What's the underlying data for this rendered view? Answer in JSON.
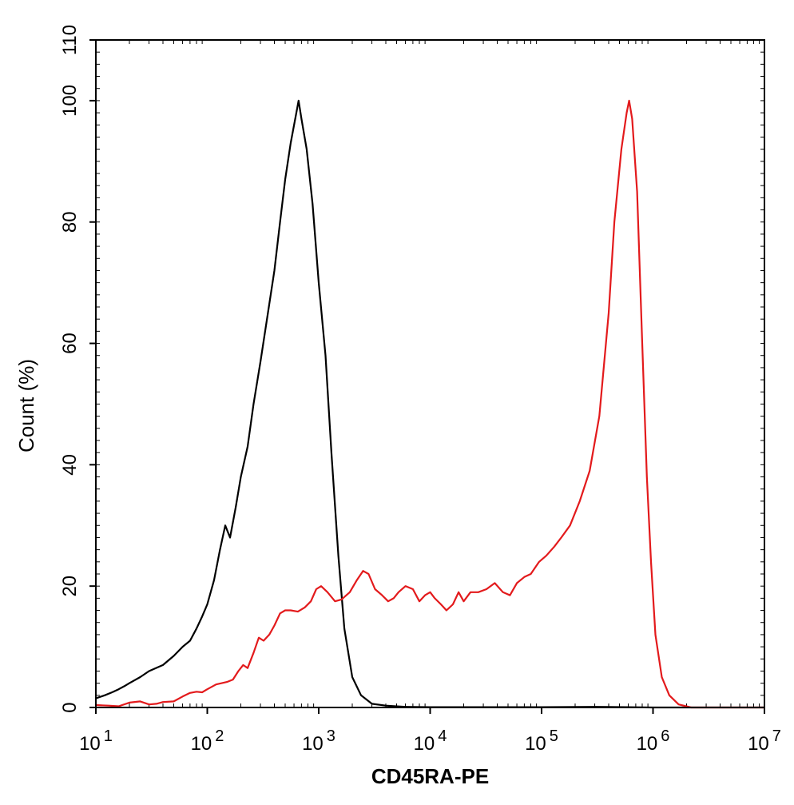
{
  "chart_data": {
    "type": "line",
    "title": "",
    "xlabel": "CD45RA-PE",
    "ylabel": "Count  (%)",
    "x_scale": "log",
    "xlim": [
      10,
      10000000
    ],
    "ylim": [
      0,
      110
    ],
    "x_ticks": [
      {
        "value": 10,
        "base": "10",
        "exp": "1"
      },
      {
        "value": 100,
        "base": "10",
        "exp": "2"
      },
      {
        "value": 1000,
        "base": "10",
        "exp": "3"
      },
      {
        "value": 10000,
        "base": "10",
        "exp": "4"
      },
      {
        "value": 100000,
        "base": "10",
        "exp": "5"
      },
      {
        "value": 1000000,
        "base": "10",
        "exp": "6"
      },
      {
        "value": 10000000,
        "base": "10",
        "exp": "7"
      }
    ],
    "y_ticks": [
      "0",
      "20",
      "40",
      "60",
      "80",
      "100",
      "110"
    ],
    "grid": false,
    "legend": "none",
    "series": [
      {
        "color": "#000000",
        "points": [
          [
            10,
            1.5
          ],
          [
            12,
            2
          ],
          [
            14,
            2.5
          ],
          [
            16,
            3
          ],
          [
            18,
            3.5
          ],
          [
            20,
            4
          ],
          [
            25,
            5
          ],
          [
            30,
            6
          ],
          [
            40,
            7
          ],
          [
            50,
            8.5
          ],
          [
            60,
            10
          ],
          [
            70,
            11
          ],
          [
            80,
            13
          ],
          [
            90,
            15
          ],
          [
            100,
            17
          ],
          [
            115,
            21
          ],
          [
            130,
            26
          ],
          [
            145,
            30
          ],
          [
            160,
            28
          ],
          [
            180,
            33
          ],
          [
            200,
            38
          ],
          [
            230,
            43
          ],
          [
            260,
            50
          ],
          [
            300,
            57
          ],
          [
            350,
            65
          ],
          [
            400,
            72
          ],
          [
            450,
            80
          ],
          [
            500,
            87
          ],
          [
            560,
            93
          ],
          [
            630,
            98
          ],
          [
            660,
            100
          ],
          [
            700,
            97
          ],
          [
            780,
            92
          ],
          [
            880,
            83
          ],
          [
            1000,
            70
          ],
          [
            1150,
            58
          ],
          [
            1300,
            42
          ],
          [
            1500,
            25
          ],
          [
            1700,
            13
          ],
          [
            2000,
            5
          ],
          [
            2400,
            2
          ],
          [
            3000,
            0.6
          ],
          [
            4000,
            0.3
          ],
          [
            6000,
            0.1
          ],
          [
            10000,
            0.05
          ],
          [
            100000,
            0.05
          ],
          [
            300000,
            0.1
          ],
          [
            1000000,
            0
          ],
          [
            10000000,
            0
          ]
        ]
      },
      {
        "color": "#e31a1c",
        "points": [
          [
            10,
            0.4
          ],
          [
            13,
            0.3
          ],
          [
            16,
            0.2
          ],
          [
            20,
            0.8
          ],
          [
            25,
            1
          ],
          [
            30,
            0.5
          ],
          [
            35,
            0.6
          ],
          [
            40,
            0.9
          ],
          [
            50,
            1
          ],
          [
            60,
            1.8
          ],
          [
            70,
            2.4
          ],
          [
            80,
            2.6
          ],
          [
            90,
            2.5
          ],
          [
            100,
            3
          ],
          [
            120,
            3.8
          ],
          [
            150,
            4.2
          ],
          [
            170,
            4.6
          ],
          [
            190,
            6
          ],
          [
            210,
            7
          ],
          [
            230,
            6.5
          ],
          [
            260,
            9
          ],
          [
            290,
            11.5
          ],
          [
            320,
            11
          ],
          [
            360,
            12
          ],
          [
            400,
            13.5
          ],
          [
            450,
            15.5
          ],
          [
            500,
            16
          ],
          [
            560,
            16
          ],
          [
            650,
            15.8
          ],
          [
            750,
            16.5
          ],
          [
            850,
            17.5
          ],
          [
            950,
            19.5
          ],
          [
            1050,
            20
          ],
          [
            1200,
            19
          ],
          [
            1400,
            17.5
          ],
          [
            1600,
            17.8
          ],
          [
            1900,
            19
          ],
          [
            2200,
            21
          ],
          [
            2500,
            22.5
          ],
          [
            2800,
            22
          ],
          [
            3200,
            19.5
          ],
          [
            3700,
            18.5
          ],
          [
            4200,
            17.5
          ],
          [
            4700,
            18
          ],
          [
            5200,
            19
          ],
          [
            6000,
            20
          ],
          [
            7000,
            19.5
          ],
          [
            8000,
            17.5
          ],
          [
            9000,
            18.5
          ],
          [
            10000,
            19
          ],
          [
            11000,
            18
          ],
          [
            12500,
            17
          ],
          [
            14000,
            16
          ],
          [
            16000,
            17
          ],
          [
            18000,
            19
          ],
          [
            20000,
            17.5
          ],
          [
            23000,
            19
          ],
          [
            27000,
            19
          ],
          [
            32000,
            19.5
          ],
          [
            38000,
            20.5
          ],
          [
            45000,
            19
          ],
          [
            52000,
            18.5
          ],
          [
            60000,
            20.5
          ],
          [
            70000,
            21.5
          ],
          [
            80000,
            22
          ],
          [
            95000,
            24
          ],
          [
            110000,
            25
          ],
          [
            130000,
            26.5
          ],
          [
            150000,
            28
          ],
          [
            180000,
            30
          ],
          [
            220000,
            34
          ],
          [
            270000,
            39
          ],
          [
            330000,
            48
          ],
          [
            400000,
            65
          ],
          [
            450000,
            80
          ],
          [
            520000,
            92
          ],
          [
            580000,
            98
          ],
          [
            610000,
            100
          ],
          [
            650000,
            97
          ],
          [
            720000,
            85
          ],
          [
            800000,
            60
          ],
          [
            880000,
            38
          ],
          [
            960000,
            24
          ],
          [
            1050000,
            12
          ],
          [
            1200000,
            5
          ],
          [
            1400000,
            2
          ],
          [
            1700000,
            0.5
          ],
          [
            2200000,
            0
          ],
          [
            10000000,
            0
          ]
        ]
      }
    ]
  }
}
